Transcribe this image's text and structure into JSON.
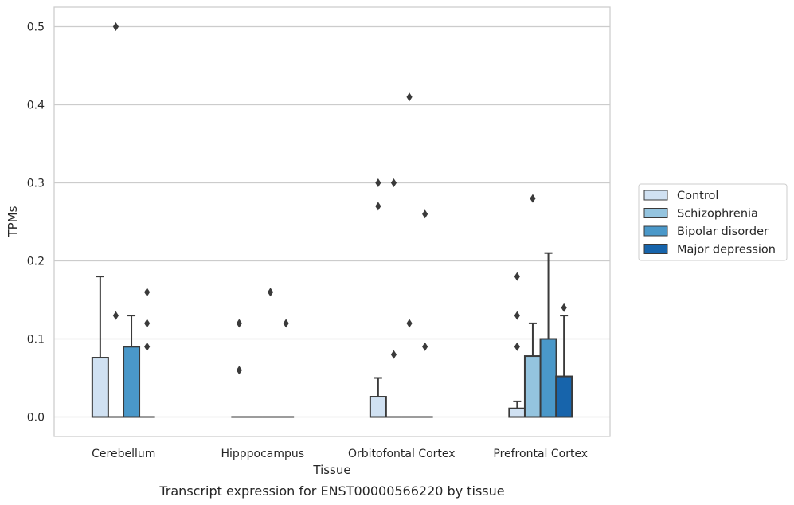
{
  "caption": "Transcript expression for ENST00000566220 by tissue",
  "chart_data": {
    "type": "box",
    "xlabel": "Tissue",
    "ylabel": "TPMs",
    "ylim": [
      -0.025,
      0.525
    ],
    "yticks": [
      "0.0",
      "0.1",
      "0.2",
      "0.3",
      "0.4",
      "0.5"
    ],
    "categories": [
      "Cerebellum",
      "Hipppocampus",
      "Orbitofontal Cortex",
      "Prefrontal Cortex"
    ],
    "grid": "horizontal",
    "legend_position": "right",
    "series": [
      {
        "name": "Control",
        "color": "#d0e1f2",
        "boxes": [
          {
            "q1": 0.0,
            "median": 0.0,
            "q3": 0.076,
            "whisker_high": 0.18,
            "outliers": []
          },
          {
            "q1": 0.0,
            "median": 0.0,
            "q3": 0.0,
            "whisker_high": 0.0,
            "outliers": [
              0.06,
              0.12
            ]
          },
          {
            "q1": 0.0,
            "median": 0.0,
            "q3": 0.026,
            "whisker_high": 0.05,
            "outliers": [
              0.27,
              0.3
            ]
          },
          {
            "q1": 0.0,
            "median": 0.0,
            "q3": 0.011,
            "whisker_high": 0.02,
            "outliers": [
              0.09,
              0.13,
              0.18
            ]
          }
        ]
      },
      {
        "name": "Schizophrenia",
        "color": "#94c4df",
        "boxes": [
          {
            "q1": 0.0,
            "median": 0.0,
            "q3": 0.0,
            "whisker_high": 0.0,
            "outliers": [
              0.13,
              0.5
            ]
          },
          {
            "q1": 0.0,
            "median": 0.0,
            "q3": 0.0,
            "whisker_high": 0.0,
            "outliers": []
          },
          {
            "q1": 0.0,
            "median": 0.0,
            "q3": 0.0,
            "whisker_high": 0.0,
            "outliers": [
              0.08,
              0.3
            ]
          },
          {
            "q1": 0.0,
            "median": 0.0,
            "q3": 0.078,
            "whisker_high": 0.12,
            "outliers": [
              0.28
            ]
          }
        ]
      },
      {
        "name": "Bipolar disorder",
        "color": "#4a98c9",
        "boxes": [
          {
            "q1": 0.0,
            "median": 0.0,
            "q3": 0.09,
            "whisker_high": 0.13,
            "outliers": []
          },
          {
            "q1": 0.0,
            "median": 0.0,
            "q3": 0.0,
            "whisker_high": 0.0,
            "outliers": [
              0.16
            ]
          },
          {
            "q1": 0.0,
            "median": 0.0,
            "q3": 0.0,
            "whisker_high": 0.0,
            "outliers": [
              0.12,
              0.41
            ]
          },
          {
            "q1": 0.0,
            "median": 0.0,
            "q3": 0.1,
            "whisker_high": 0.21,
            "outliers": []
          }
        ]
      },
      {
        "name": "Major depression",
        "color": "#1764ab",
        "boxes": [
          {
            "q1": 0.0,
            "median": 0.0,
            "q3": 0.0,
            "whisker_high": 0.0,
            "outliers": [
              0.09,
              0.12,
              0.16
            ]
          },
          {
            "q1": 0.0,
            "median": 0.0,
            "q3": 0.0,
            "whisker_high": 0.0,
            "outliers": [
              0.12
            ]
          },
          {
            "q1": 0.0,
            "median": 0.0,
            "q3": 0.0,
            "whisker_high": 0.0,
            "outliers": [
              0.09,
              0.26
            ]
          },
          {
            "q1": 0.0,
            "median": 0.0,
            "q3": 0.052,
            "whisker_high": 0.13,
            "outliers": [
              0.14
            ]
          }
        ]
      }
    ]
  }
}
